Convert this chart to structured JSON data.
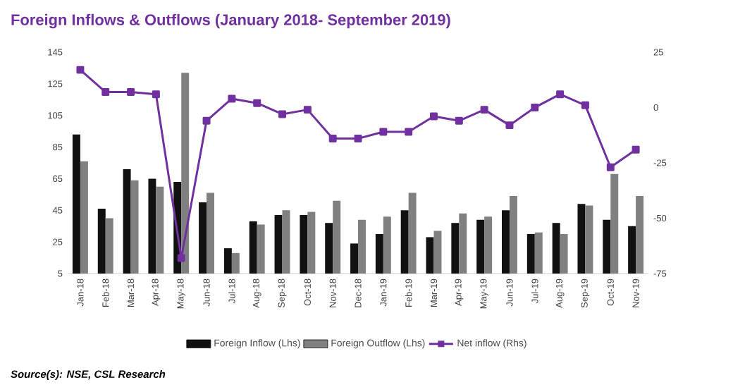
{
  "chart_data": {
    "type": "bar",
    "title": "Foreign Inflows & Outflows (January 2018- September 2019)",
    "categories": [
      "Jan-18",
      "Feb-18",
      "Mar-18",
      "Apr-18",
      "May-18",
      "Jun-18",
      "Jul-18",
      "Aug-18",
      "Sep-18",
      "Oct-18",
      "Nov-18",
      "Dec-18",
      "Jan-19",
      "Feb-19",
      "Mar-19",
      "Apr-19",
      "May-19",
      "Jun-19",
      "Jul-19",
      "Aug-19",
      "Sep-19",
      "Oct-19",
      "Nov-19"
    ],
    "series": [
      {
        "name": "Foreign Inflow (Lhs)",
        "color": "#111111",
        "values": [
          93,
          46,
          71,
          65,
          63,
          50,
          21,
          38,
          42,
          42,
          37,
          24,
          30,
          45,
          28,
          37,
          39,
          45,
          30,
          37,
          49,
          39,
          35
        ]
      },
      {
        "name": "Foreign Outflow (Lhs)",
        "color": "#808080",
        "values": [
          76,
          40,
          64,
          60,
          132,
          56,
          18,
          36,
          45,
          44,
          51,
          39,
          41,
          56,
          32,
          43,
          41,
          54,
          31,
          30,
          48,
          68,
          54
        ]
      },
      {
        "name": "Net inflow (Rhs)",
        "type": "line",
        "axis": "y2",
        "color": "#7030a0",
        "values": [
          17,
          7,
          7,
          6,
          -68,
          -6,
          4,
          2,
          -3,
          -1,
          -14,
          -14,
          -11,
          -11,
          -4,
          -6,
          -1,
          -8,
          0,
          6,
          1,
          -27,
          -19
        ]
      }
    ],
    "ylim": [
      5,
      145
    ],
    "yticks": [
      5,
      25,
      45,
      65,
      85,
      105,
      125,
      145
    ],
    "y2lim": [
      -75,
      25
    ],
    "y2ticks": [
      -75,
      -50,
      -25,
      0,
      25
    ],
    "marker": "square",
    "legend": "bottom",
    "annotations": [
      "Source(s): NSE, CSL Research"
    ]
  }
}
